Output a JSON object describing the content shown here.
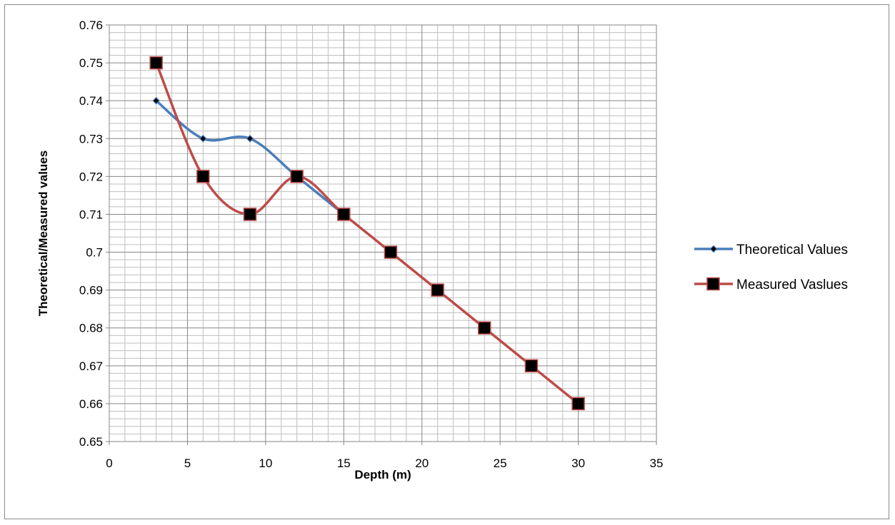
{
  "chart_data": {
    "type": "line",
    "title": "",
    "xlabel": "Depth (m)",
    "ylabel": "Theoretical/Measured values",
    "xlim": [
      0,
      35
    ],
    "ylim": [
      0.65,
      0.76
    ],
    "x_ticks": [
      "0",
      "5",
      "10",
      "15",
      "20",
      "25",
      "30",
      "35"
    ],
    "y_ticks": [
      "0.65",
      "0.66",
      "0.67",
      "0.68",
      "0.69",
      "0.7",
      "0.71",
      "0.72",
      "0.73",
      "0.74",
      "0.75",
      "0.76"
    ],
    "grid": true,
    "legend_position": "right",
    "smoothed": true,
    "x": [
      3,
      6,
      9,
      12,
      15,
      18,
      21,
      24,
      27,
      30
    ],
    "series": [
      {
        "name": "Theoretical Values",
        "color": "#4a7ebb",
        "marker": "diamond",
        "x": [
          3,
          6,
          9,
          12,
          15
        ],
        "values": [
          0.74,
          0.73,
          0.73,
          0.72,
          0.71
        ]
      },
      {
        "name": "Measured Vaslues",
        "color": "#be4b48",
        "marker": "square",
        "x": [
          3,
          6,
          9,
          12,
          15,
          18,
          21,
          24,
          27,
          30
        ],
        "values": [
          0.75,
          0.72,
          0.71,
          0.72,
          0.71,
          0.7,
          0.69,
          0.68,
          0.67,
          0.66
        ]
      }
    ]
  }
}
